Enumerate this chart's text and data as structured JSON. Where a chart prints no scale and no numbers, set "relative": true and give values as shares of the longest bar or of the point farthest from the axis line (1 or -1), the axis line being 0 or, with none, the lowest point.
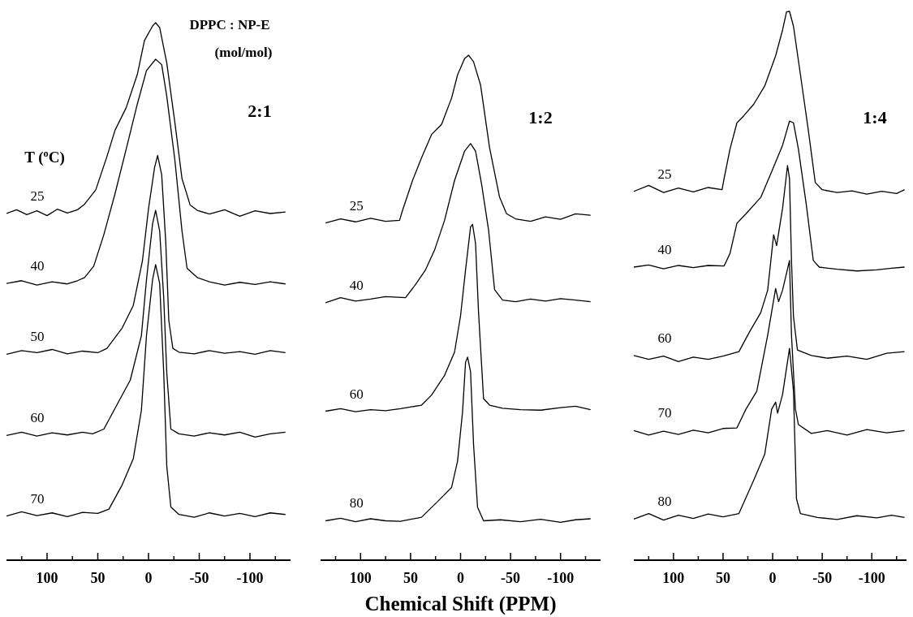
{
  "chart_data": [
    {
      "type": "line",
      "relative": true,
      "xlim": [
        140,
        -140
      ],
      "xticks": [
        {
          "value": 125,
          "label": null
        },
        100,
        {
          "value": 75,
          "label": null
        },
        50,
        {
          "value": 25,
          "label": null
        },
        0,
        {
          "value": -25,
          "label": null
        },
        -50,
        {
          "value": -75,
          "label": null
        },
        -100,
        {
          "value": -125,
          "label": null
        }
      ],
      "tick_labels": "x",
      "grid": false,
      "marker": "none",
      "line_style": "solid",
      "annotations": [
        "DPPC : NP-E",
        "(mol/mol)",
        "2:1",
        "T ($^{o}$C)"
      ],
      "series": [
        {
          "name": "25",
          "color": "#000000",
          "x": [
            140,
            130,
            120,
            110,
            100,
            90,
            80,
            70,
            63,
            52,
            41,
            33,
            22,
            11,
            4,
            -4,
            -7,
            -11,
            -18,
            -26,
            -33,
            -41,
            -48,
            -60,
            -75,
            -90,
            -105,
            -120,
            -135
          ],
          "values": [
            0.645,
            0.652,
            0.643,
            0.65,
            0.641,
            0.653,
            0.646,
            0.652,
            0.6625,
            0.689,
            0.751,
            0.8,
            0.842,
            0.904,
            0.967,
            0.994,
            1.0,
            0.991,
            0.925,
            0.814,
            0.71,
            0.661,
            0.651,
            0.644,
            0.652,
            0.64,
            0.65,
            0.645,
            0.648
          ]
        },
        {
          "name": "40",
          "color": "#000000",
          "x": [
            140,
            125,
            110,
            95,
            80,
            70,
            63,
            54,
            44,
            33,
            22,
            11,
            2,
            -7,
            -13,
            -18,
            -26,
            -33,
            -38,
            -48,
            -60,
            -75,
            -90,
            -105,
            -120,
            -135
          ],
          "values": [
            0.515,
            0.52,
            0.512,
            0.518,
            0.514,
            0.52,
            0.526,
            0.547,
            0.606,
            0.682,
            0.765,
            0.849,
            0.911,
            0.932,
            0.922,
            0.863,
            0.744,
            0.6125,
            0.543,
            0.526,
            0.518,
            0.512,
            0.517,
            0.513,
            0.518,
            0.514
          ]
        },
        {
          "name": "50",
          "color": "#000000",
          "x": [
            140,
            125,
            110,
            95,
            80,
            65,
            50,
            41,
            26,
            15,
            6,
            0,
            -6,
            -9,
            -13,
            -17,
            -20,
            -24,
            -30,
            -45,
            -60,
            -75,
            -90,
            -105,
            -120,
            -135
          ],
          "values": [
            0.383,
            0.39,
            0.386,
            0.392,
            0.384,
            0.389,
            0.386,
            0.394,
            0.432,
            0.474,
            0.557,
            0.654,
            0.731,
            0.753,
            0.717,
            0.592,
            0.446,
            0.394,
            0.387,
            0.384,
            0.39,
            0.385,
            0.388,
            0.383,
            0.39,
            0.386
          ]
        },
        {
          "name": "60",
          "color": "#000000",
          "x": [
            140,
            125,
            110,
            95,
            80,
            65,
            55,
            44,
            30,
            18,
            7,
            2,
            -4,
            -7,
            -11,
            -15,
            -18,
            -22,
            -30,
            -45,
            -60,
            -75,
            -90,
            -105,
            -120,
            -135
          ],
          "values": [
            0.232,
            0.238,
            0.231,
            0.237,
            0.233,
            0.238,
            0.235,
            0.244,
            0.293,
            0.335,
            0.418,
            0.522,
            0.626,
            0.651,
            0.6125,
            0.4875,
            0.349,
            0.244,
            0.235,
            0.231,
            0.237,
            0.233,
            0.238,
            0.229,
            0.235,
            0.238
          ]
        },
        {
          "name": "70",
          "color": "#000000",
          "x": [
            140,
            125,
            110,
            95,
            80,
            65,
            50,
            39,
            26,
            15,
            7,
            2,
            -4,
            -7,
            -11,
            -15,
            -18,
            -22,
            -30,
            -45,
            -60,
            -75,
            -90,
            -105,
            -120,
            -135
          ],
          "values": [
            0.082,
            0.09,
            0.083,
            0.088,
            0.081,
            0.089,
            0.087,
            0.095,
            0.14,
            0.189,
            0.279,
            0.418,
            0.522,
            0.55,
            0.515,
            0.349,
            0.175,
            0.099,
            0.085,
            0.08,
            0.088,
            0.082,
            0.087,
            0.081,
            0.088,
            0.085
          ]
        }
      ]
    },
    {
      "type": "line",
      "relative": true,
      "xlim": [
        140,
        -140
      ],
      "xticks": [
        {
          "value": 125,
          "label": null
        },
        100,
        {
          "value": 75,
          "label": null
        },
        50,
        {
          "value": 25,
          "label": null
        },
        0,
        {
          "value": -25,
          "label": null
        },
        -50,
        {
          "value": -75,
          "label": null
        },
        -100,
        {
          "value": -125,
          "label": null
        }
      ],
      "tick_labels": "x",
      "grid": false,
      "marker": "none",
      "line_style": "solid",
      "xlabel": "Chemical Shift (PPM)",
      "annotations": [
        "1:2"
      ],
      "series": [
        {
          "name": "25",
          "color": "#000000",
          "x": [
            135,
            120,
            105,
            90,
            75,
            61,
            58,
            48,
            39,
            29,
            19,
            9,
            3,
            -4,
            -8,
            -13,
            -20,
            -29,
            -39,
            -46,
            -55,
            -70,
            -85,
            -100,
            -115,
            -130
          ],
          "values": [
            0.668,
            0.676,
            0.67,
            0.677,
            0.671,
            0.673,
            0.693,
            0.752,
            0.797,
            0.843,
            0.863,
            0.915,
            0.961,
            0.993,
            1.0,
            0.987,
            0.941,
            0.817,
            0.719,
            0.686,
            0.676,
            0.671,
            0.68,
            0.675,
            0.686,
            0.683
          ]
        },
        {
          "name": "40",
          "color": "#000000",
          "x": [
            135,
            120,
            105,
            90,
            75,
            55,
            45,
            35,
            26,
            16,
            6,
            -4,
            -10,
            -15,
            -21,
            -28,
            -34,
            -42,
            -55,
            -70,
            -85,
            -100,
            -115,
            -130
          ],
          "values": [
            0.51,
            0.52,
            0.513,
            0.517,
            0.522,
            0.52,
            0.546,
            0.575,
            0.614,
            0.673,
            0.752,
            0.81,
            0.825,
            0.81,
            0.745,
            0.654,
            0.536,
            0.515,
            0.512,
            0.517,
            0.513,
            0.518,
            0.515,
            0.512
          ]
        },
        {
          "name": "60",
          "color": "#000000",
          "x": [
            135,
            120,
            105,
            90,
            75,
            60,
            39,
            29,
            16,
            6,
            0,
            -5,
            -10,
            -12,
            -15,
            -18,
            -23,
            -29,
            -42,
            -60,
            -80,
            -100,
            -115,
            -130
          ],
          "values": [
            0.295,
            0.3,
            0.294,
            0.298,
            0.296,
            0.3,
            0.307,
            0.327,
            0.366,
            0.412,
            0.484,
            0.575,
            0.66,
            0.665,
            0.627,
            0.49,
            0.32,
            0.307,
            0.301,
            0.298,
            0.297,
            0.302,
            0.305,
            0.298
          ]
        },
        {
          "name": "80",
          "color": "#000000",
          "x": [
            135,
            120,
            105,
            90,
            75,
            60,
            39,
            22,
            9,
            3,
            -2,
            -5,
            -7,
            -10,
            -13,
            -17,
            -23,
            -40,
            -60,
            -80,
            -100,
            -115,
            -130
          ],
          "values": [
            0.078,
            0.083,
            0.076,
            0.082,
            0.078,
            0.077,
            0.085,
            0.118,
            0.144,
            0.196,
            0.294,
            0.392,
            0.402,
            0.373,
            0.229,
            0.105,
            0.078,
            0.08,
            0.076,
            0.081,
            0.075,
            0.08,
            0.082
          ]
        }
      ]
    },
    {
      "type": "line",
      "relative": true,
      "xlim": [
        140,
        -135
      ],
      "xticks": [
        {
          "value": 125,
          "label": null
        },
        100,
        {
          "value": 75,
          "label": null
        },
        50,
        {
          "value": 25,
          "label": null
        },
        0,
        {
          "value": -25,
          "label": null
        },
        -50,
        {
          "value": -75,
          "label": null
        },
        -100,
        {
          "value": -125,
          "label": null
        }
      ],
      "tick_labels": "x",
      "grid": false,
      "marker": "none",
      "line_style": "solid",
      "annotations": [
        "1:4"
      ],
      "series": [
        {
          "name": "25",
          "color": "#000000",
          "x": [
            140,
            125,
            110,
            95,
            80,
            65,
            51,
            49,
            43,
            36,
            29,
            19,
            8,
            -3,
            -10,
            -14,
            -17,
            -21,
            -28,
            -36,
            -43,
            -50,
            -65,
            -80,
            -95,
            -110,
            -125,
            -133
          ],
          "values": [
            0.672,
            0.683,
            0.67,
            0.678,
            0.671,
            0.679,
            0.675,
            0.695,
            0.749,
            0.797,
            0.81,
            0.831,
            0.864,
            0.919,
            0.966,
            0.999,
            1.0,
            0.973,
            0.885,
            0.783,
            0.688,
            0.675,
            0.67,
            0.673,
            0.667,
            0.672,
            0.668,
            0.675
          ]
        },
        {
          "name": "40",
          "color": "#000000",
          "x": [
            140,
            125,
            110,
            95,
            80,
            65,
            49,
            43,
            36,
            27,
            12,
            1,
            -10,
            -17,
            -21,
            -26,
            -34,
            -41,
            -47,
            -65,
            -85,
            -105,
            -120,
            -133
          ],
          "values": [
            0.534,
            0.538,
            0.531,
            0.537,
            0.533,
            0.537,
            0.536,
            0.559,
            0.614,
            0.631,
            0.661,
            0.708,
            0.756,
            0.8,
            0.797,
            0.749,
            0.647,
            0.546,
            0.534,
            0.53,
            0.527,
            0.529,
            0.532,
            0.534
          ]
        },
        {
          "name": "60",
          "color": "#000000",
          "x": [
            140,
            125,
            110,
            95,
            80,
            65,
            50,
            34,
            23,
            12,
            5,
            -1,
            -4,
            -10,
            -15,
            -17,
            -19,
            -21,
            -25,
            -39,
            -55,
            -75,
            -95,
            -115,
            -133
          ],
          "values": [
            0.373,
            0.366,
            0.372,
            0.362,
            0.37,
            0.366,
            0.372,
            0.38,
            0.417,
            0.451,
            0.492,
            0.593,
            0.573,
            0.641,
            0.719,
            0.695,
            0.546,
            0.444,
            0.383,
            0.373,
            0.368,
            0.372,
            0.366,
            0.377,
            0.38
          ]
        },
        {
          "name": "70",
          "color": "#000000",
          "x": [
            140,
            125,
            110,
            95,
            80,
            65,
            50,
            36,
            27,
            16,
            5,
            -3,
            -6,
            -10,
            -17,
            -19,
            -23,
            -26,
            -39,
            -55,
            -75,
            -95,
            -115,
            -133
          ],
          "values": [
            0.236,
            0.228,
            0.235,
            0.229,
            0.237,
            0.232,
            0.24,
            0.241,
            0.275,
            0.308,
            0.41,
            0.495,
            0.471,
            0.492,
            0.546,
            0.41,
            0.275,
            0.247,
            0.231,
            0.236,
            0.228,
            0.238,
            0.232,
            0.236
          ]
        },
        {
          "name": "80",
          "color": "#000000",
          "x": [
            140,
            125,
            110,
            95,
            80,
            65,
            50,
            34,
            19,
            8,
            1,
            -3,
            -5,
            -10,
            -17,
            -21,
            -24,
            -28,
            -45,
            -65,
            -85,
            -105,
            -120,
            -133
          ],
          "values": [
            0.075,
            0.085,
            0.073,
            0.082,
            0.076,
            0.084,
            0.079,
            0.085,
            0.146,
            0.193,
            0.275,
            0.288,
            0.268,
            0.302,
            0.386,
            0.308,
            0.112,
            0.085,
            0.078,
            0.074,
            0.081,
            0.077,
            0.082,
            0.078
          ]
        }
      ]
    }
  ]
}
